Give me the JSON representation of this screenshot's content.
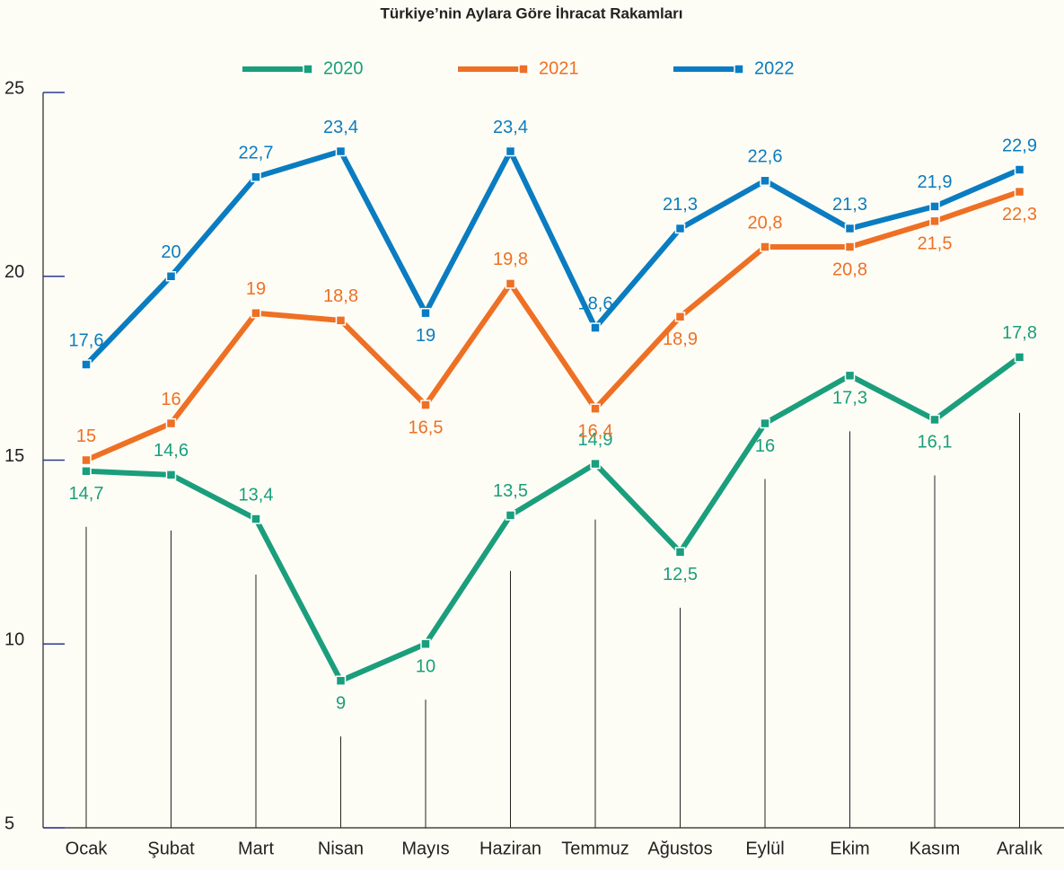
{
  "chart_data": {
    "type": "line",
    "title": "Türkiye’nin Aylara Göre İhracat Rakamları",
    "categories": [
      "Ocak",
      "Şubat",
      "Mart",
      "Nisan",
      "Mayıs",
      "Haziran",
      "Temmuz",
      "Ağustos",
      "Eylül",
      "Ekim",
      "Kasım",
      "Aralık"
    ],
    "series": [
      {
        "name": "2020",
        "color": "#1a9e7c",
        "values": [
          14.7,
          14.6,
          13.4,
          9,
          10,
          13.5,
          14.9,
          12.5,
          16,
          17.3,
          16.1,
          17.8
        ],
        "value_labels": [
          "14,7",
          "14,6",
          "13,4",
          "9",
          "10",
          "13,5",
          "14,9",
          "12,5",
          "16",
          "17,3",
          "16,1",
          "17,8"
        ]
      },
      {
        "name": "2021",
        "color": "#ee7024",
        "values": [
          15,
          16,
          19,
          18.8,
          16.5,
          19.8,
          16.4,
          18.9,
          20.8,
          20.8,
          21.5,
          22.3
        ],
        "value_labels": [
          "15",
          "16",
          "19",
          "18,8",
          "16,5",
          "19,8",
          "16,4",
          "18,9",
          "20,8",
          "20,8",
          "21,5",
          "22,3"
        ]
      },
      {
        "name": "2022",
        "color": "#0a7cc1",
        "values": [
          17.6,
          20,
          22.7,
          23.4,
          19,
          23.4,
          18.6,
          21.3,
          22.6,
          21.3,
          21.9,
          22.9
        ],
        "value_labels": [
          "17,6",
          "20",
          "22,7",
          "23,4",
          "19",
          "23,4",
          "18,6",
          "21,3",
          "22,6",
          "21,3",
          "21,9",
          "22,9"
        ]
      }
    ],
    "ylim": [
      5,
      25
    ],
    "yticks": [
      5,
      10,
      15,
      20,
      25
    ],
    "legend": "top"
  }
}
